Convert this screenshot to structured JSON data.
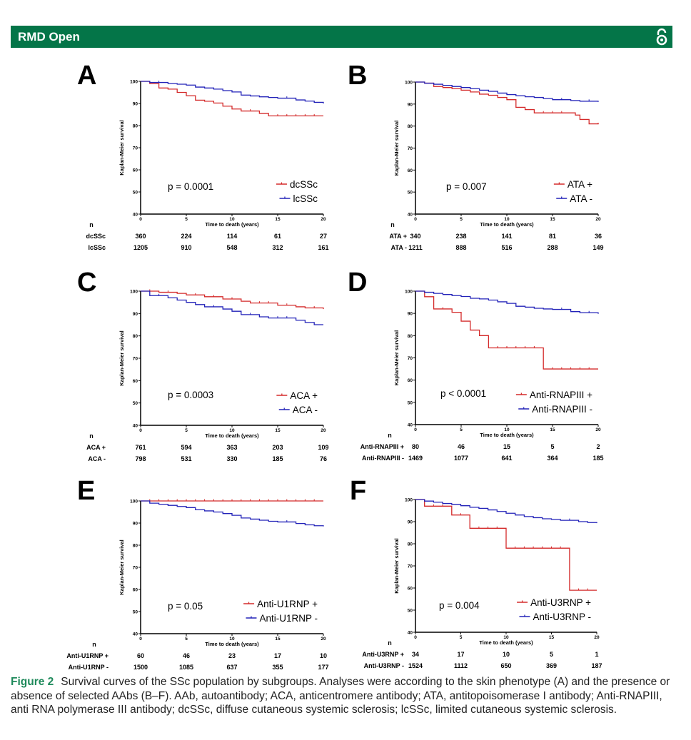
{
  "header": {
    "journal": "RMD Open",
    "icon": "open-access-icon"
  },
  "caption": {
    "label": "Figure 2",
    "text": "Survival curves of the SSc population by subgroups. Analyses were according to the skin phenotype (A) and the presence or absence of selected AAbs (B–F). AAb, autoantibody; ACA, anticentromere antibody; ATA, antitopoisomerase I antibody; Anti-RNAPIII, anti RNA polymerase III antibody; dcSSc, diffuse cutaneous systemic sclerosis; lcSSc, limited cutaneous systemic sclerosis."
  },
  "colors": {
    "red": "#d42a2a",
    "blue": "#2222b8",
    "header": "#047548"
  },
  "chart_data": [
    {
      "panel": "A",
      "type": "line",
      "xlabel": "Time to death (years)",
      "ylabel": "Kaplan-Meier survival",
      "xlim": [
        0,
        20
      ],
      "ylim": [
        40,
        100
      ],
      "xticks": [
        0,
        5,
        10,
        15,
        20
      ],
      "yticks": [
        40,
        50,
        60,
        70,
        80,
        90,
        100
      ],
      "p_value": "p = 0.0001",
      "risk_header": "n",
      "risk_times": [
        0,
        5,
        10,
        15,
        20
      ],
      "series": [
        {
          "name": "dcSSc",
          "color": "red",
          "risk": [
            360,
            224,
            114,
            61,
            27
          ],
          "points": [
            [
              0,
              100
            ],
            [
              1,
              99
            ],
            [
              2,
              97
            ],
            [
              3,
              96.5
            ],
            [
              4,
              95
            ],
            [
              5,
              93.5
            ],
            [
              6,
              91.5
            ],
            [
              7,
              91
            ],
            [
              8,
              90.2
            ],
            [
              9,
              88.8
            ],
            [
              10,
              87.5
            ],
            [
              11,
              86.6
            ],
            [
              13,
              85.5
            ],
            [
              14,
              84.4
            ],
            [
              20,
              84.4
            ]
          ]
        },
        {
          "name": "lcSSc",
          "color": "blue",
          "risk": [
            1205,
            910,
            548,
            312,
            161
          ],
          "points": [
            [
              0,
              100
            ],
            [
              1,
              99.5
            ],
            [
              3,
              99
            ],
            [
              4,
              98.7
            ],
            [
              5,
              98.3
            ],
            [
              6,
              97.4
            ],
            [
              7,
              97
            ],
            [
              8,
              96.5
            ],
            [
              9,
              95.8
            ],
            [
              10,
              95.2
            ],
            [
              11,
              93.8
            ],
            [
              12,
              93.4
            ],
            [
              13,
              93
            ],
            [
              14,
              92.7
            ],
            [
              15,
              92.4
            ],
            [
              17,
              91.6
            ],
            [
              18,
              91.1
            ],
            [
              19,
              90.5
            ],
            [
              20,
              90
            ]
          ]
        }
      ]
    },
    {
      "panel": "B",
      "type": "line",
      "xlabel": "Time to death (years)",
      "ylabel": "Kaplan-Meier survival",
      "xlim": [
        0,
        20
      ],
      "ylim": [
        40,
        100
      ],
      "xticks": [
        0,
        5,
        10,
        15,
        20
      ],
      "yticks": [
        40,
        50,
        60,
        70,
        80,
        90,
        100
      ],
      "p_value": "p = 0.007",
      "risk_header": "n",
      "risk_times": [
        0,
        5,
        10,
        15,
        20
      ],
      "series": [
        {
          "name": "ATA +",
          "color": "red",
          "risk": [
            340,
            238,
            141,
            81,
            36
          ],
          "points": [
            [
              0,
              100
            ],
            [
              1,
              99.5
            ],
            [
              2,
              98
            ],
            [
              3,
              97.5
            ],
            [
              4,
              97
            ],
            [
              5,
              96.3
            ],
            [
              6,
              95.5
            ],
            [
              7,
              94.5
            ],
            [
              8,
              94
            ],
            [
              9,
              93
            ],
            [
              10,
              92
            ],
            [
              11,
              88.5
            ],
            [
              12,
              87.5
            ],
            [
              13,
              86
            ],
            [
              17,
              86
            ],
            [
              17.5,
              85
            ],
            [
              18,
              83
            ],
            [
              19,
              81
            ],
            [
              20,
              81.5
            ]
          ]
        },
        {
          "name": "ATA -",
          "color": "blue",
          "risk": [
            1211,
            888,
            516,
            288,
            149
          ],
          "points": [
            [
              0,
              100
            ],
            [
              1,
              99.5
            ],
            [
              2,
              99
            ],
            [
              3,
              98.5
            ],
            [
              4,
              98
            ],
            [
              5,
              97.5
            ],
            [
              6,
              97
            ],
            [
              7,
              96.3
            ],
            [
              8,
              95.8
            ],
            [
              9,
              95
            ],
            [
              10,
              94.3
            ],
            [
              11,
              93.8
            ],
            [
              12,
              93.3
            ],
            [
              13,
              93
            ],
            [
              14,
              92.5
            ],
            [
              15,
              92
            ],
            [
              17,
              91.6
            ],
            [
              18,
              91.3
            ],
            [
              20,
              91
            ]
          ]
        }
      ]
    },
    {
      "panel": "C",
      "type": "line",
      "xlabel": "Time to death (years)",
      "ylabel": "Kaplan-Meier survival",
      "xlim": [
        0,
        20
      ],
      "ylim": [
        40,
        100
      ],
      "xticks": [
        0,
        5,
        10,
        15,
        20
      ],
      "yticks": [
        40,
        50,
        60,
        70,
        80,
        90,
        100
      ],
      "p_value": "p = 0.0003",
      "risk_header": "n",
      "risk_times": [
        0,
        5,
        10,
        15,
        20
      ],
      "series": [
        {
          "name": "ACA +",
          "color": "red",
          "risk": [
            761,
            594,
            363,
            203,
            109
          ],
          "points": [
            [
              0,
              100
            ],
            [
              2,
              99.5
            ],
            [
              4,
              99
            ],
            [
              5,
              98.3
            ],
            [
              7,
              97.5
            ],
            [
              9,
              96.5
            ],
            [
              11,
              95.5
            ],
            [
              12,
              94.7
            ],
            [
              15,
              93.7
            ],
            [
              17,
              93
            ],
            [
              18,
              92.5
            ],
            [
              20,
              92
            ]
          ]
        },
        {
          "name": "ACA -",
          "color": "blue",
          "risk": [
            798,
            531,
            330,
            185,
            76
          ],
          "points": [
            [
              0,
              100
            ],
            [
              1,
              98
            ],
            [
              3,
              97
            ],
            [
              4,
              96
            ],
            [
              5,
              95
            ],
            [
              6,
              94
            ],
            [
              7,
              93
            ],
            [
              9,
              92
            ],
            [
              10,
              91
            ],
            [
              11,
              89.5
            ],
            [
              13,
              88.5
            ],
            [
              14,
              88
            ],
            [
              17,
              87
            ],
            [
              18,
              86
            ],
            [
              19,
              85
            ],
            [
              20,
              85
            ]
          ]
        }
      ]
    },
    {
      "panel": "D",
      "type": "line",
      "xlabel": "Time to death (years)",
      "ylabel": "Kaplan-Meier survival",
      "xlim": [
        0,
        20
      ],
      "ylim": [
        40,
        100
      ],
      "xticks": [
        0,
        5,
        10,
        15,
        20
      ],
      "yticks": [
        40,
        50,
        60,
        70,
        80,
        90,
        100
      ],
      "p_value": "p < 0.0001",
      "risk_header": "n",
      "risk_times": [
        0,
        5,
        10,
        15,
        20
      ],
      "series": [
        {
          "name": "Anti-RNAPIII +",
          "color": "red",
          "risk": [
            80,
            46,
            15,
            5,
            2
          ],
          "points": [
            [
              0,
              100
            ],
            [
              1,
              97.5
            ],
            [
              2,
              92
            ],
            [
              4,
              90.5
            ],
            [
              5,
              86.5
            ],
            [
              6,
              82.5
            ],
            [
              7,
              80
            ],
            [
              8,
              74.5
            ],
            [
              14,
              65
            ],
            [
              20,
              65
            ]
          ]
        },
        {
          "name": "Anti-RNAPIII -",
          "color": "blue",
          "risk": [
            1469,
            1077,
            641,
            364,
            185
          ],
          "points": [
            [
              0,
              100
            ],
            [
              1,
              99.5
            ],
            [
              2,
              99
            ],
            [
              3,
              98.5
            ],
            [
              4,
              98
            ],
            [
              5,
              97.6
            ],
            [
              6,
              96.8
            ],
            [
              7,
              96.5
            ],
            [
              8,
              96
            ],
            [
              9,
              95.2
            ],
            [
              10,
              94.5
            ],
            [
              11,
              93.2
            ],
            [
              12,
              92.8
            ],
            [
              13,
              92.3
            ],
            [
              14,
              92
            ],
            [
              15,
              91.8
            ],
            [
              17,
              90.8
            ],
            [
              18,
              90.3
            ],
            [
              20,
              89.8
            ]
          ]
        }
      ]
    },
    {
      "panel": "E",
      "type": "line",
      "xlabel": "Time to death (years)",
      "ylabel": "Kaplan-Meier survival",
      "xlim": [
        0,
        20
      ],
      "ylim": [
        40,
        100
      ],
      "xticks": [
        0,
        5,
        10,
        15,
        20
      ],
      "yticks": [
        40,
        50,
        60,
        70,
        80,
        90,
        100
      ],
      "p_value": "p = 0.05",
      "risk_header": "n",
      "risk_times": [
        0,
        5,
        10,
        15,
        20
      ],
      "series": [
        {
          "name": "Anti-U1RNP +",
          "color": "red",
          "risk": [
            60,
            46,
            23,
            17,
            10
          ],
          "points": [
            [
              0,
              100
            ],
            [
              20,
              100
            ]
          ]
        },
        {
          "name": "Anti-U1RNP -",
          "color": "blue",
          "risk": [
            1500,
            1085,
            637,
            355,
            177
          ],
          "points": [
            [
              0,
              100
            ],
            [
              1,
              99
            ],
            [
              2,
              98.5
            ],
            [
              3,
              98
            ],
            [
              4,
              97.5
            ],
            [
              5,
              97
            ],
            [
              6,
              96
            ],
            [
              7,
              95.5
            ],
            [
              8,
              95
            ],
            [
              9,
              94.3
            ],
            [
              10,
              93.5
            ],
            [
              11,
              92.3
            ],
            [
              12,
              91.8
            ],
            [
              13,
              91.3
            ],
            [
              14,
              90.8
            ],
            [
              15,
              90.5
            ],
            [
              17,
              89.8
            ],
            [
              18,
              89.2
            ],
            [
              19,
              88.8
            ],
            [
              20,
              88.5
            ]
          ]
        }
      ]
    },
    {
      "panel": "F",
      "type": "line",
      "xlabel": "Time to death (years)",
      "ylabel": "Kaplan-Meier survival",
      "xlim": [
        0,
        20
      ],
      "ylim": [
        40,
        100
      ],
      "xticks": [
        0,
        5,
        10,
        15,
        20
      ],
      "yticks": [
        40,
        50,
        60,
        70,
        80,
        90,
        100
      ],
      "p_value": "p = 0.004",
      "risk_header": "n",
      "risk_times": [
        0,
        5,
        10,
        15,
        20
      ],
      "series": [
        {
          "name": "Anti-U3RNP +",
          "color": "red",
          "risk": [
            34,
            17,
            10,
            5,
            1
          ],
          "points": [
            [
              0,
              100
            ],
            [
              1,
              97
            ],
            [
              4,
              93
            ],
            [
              6,
              87
            ],
            [
              10,
              78
            ],
            [
              17,
              59
            ],
            [
              20,
              59
            ]
          ]
        },
        {
          "name": "Anti-U3RNP -",
          "color": "blue",
          "risk": [
            1524,
            1112,
            650,
            369,
            187
          ],
          "points": [
            [
              0,
              100
            ],
            [
              1,
              99.3
            ],
            [
              2,
              98.8
            ],
            [
              3,
              98.2
            ],
            [
              4,
              97.8
            ],
            [
              5,
              97.2
            ],
            [
              6,
              96.5
            ],
            [
              7,
              96
            ],
            [
              8,
              95.3
            ],
            [
              9,
              94.6
            ],
            [
              10,
              93.8
            ],
            [
              11,
              93
            ],
            [
              12,
              92.3
            ],
            [
              13,
              91.8
            ],
            [
              14,
              91.3
            ],
            [
              15,
              91
            ],
            [
              16,
              90.6
            ],
            [
              18,
              90
            ],
            [
              19,
              89.6
            ],
            [
              20,
              89.3
            ]
          ]
        }
      ]
    }
  ]
}
